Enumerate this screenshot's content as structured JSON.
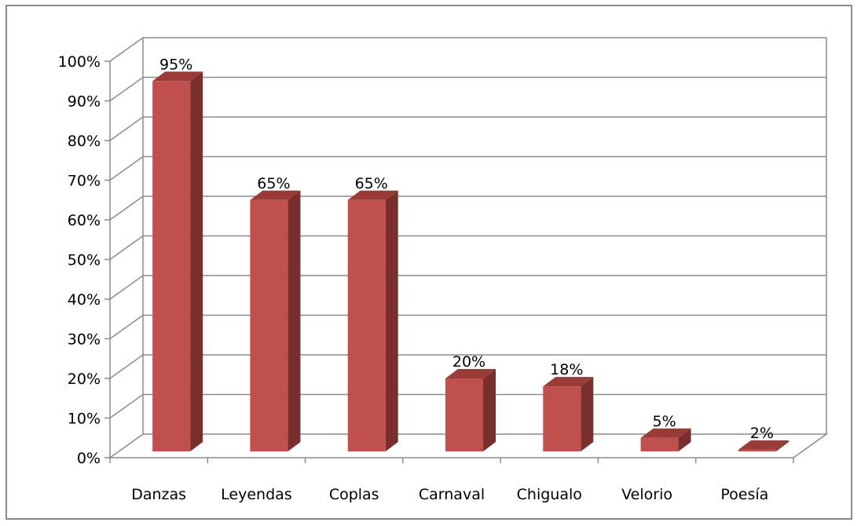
{
  "chart_data": {
    "type": "bar",
    "categories": [
      "Danzas",
      "Leyendas",
      "Coplas",
      "Carnaval",
      "Chigualo",
      "Velorio",
      "Poesía"
    ],
    "values": [
      95,
      65,
      65,
      20,
      18,
      5,
      2
    ],
    "data_labels": [
      "95%",
      "65%",
      "65%",
      "20%",
      "18%",
      "5%",
      "2%"
    ],
    "y_ticks": [
      "0%",
      "10%",
      "20%",
      "30%",
      "40%",
      "50%",
      "60%",
      "70%",
      "80%",
      "90%",
      "100%"
    ],
    "ylim": [
      0,
      100
    ],
    "grid": true,
    "three_d": true,
    "colors": {
      "bar_front": "#c0504d",
      "bar_side": "#7b2f2d",
      "bar_top": "#9b3b38",
      "grid": "#8c8c8c",
      "axis": "#8c8c8c"
    }
  }
}
